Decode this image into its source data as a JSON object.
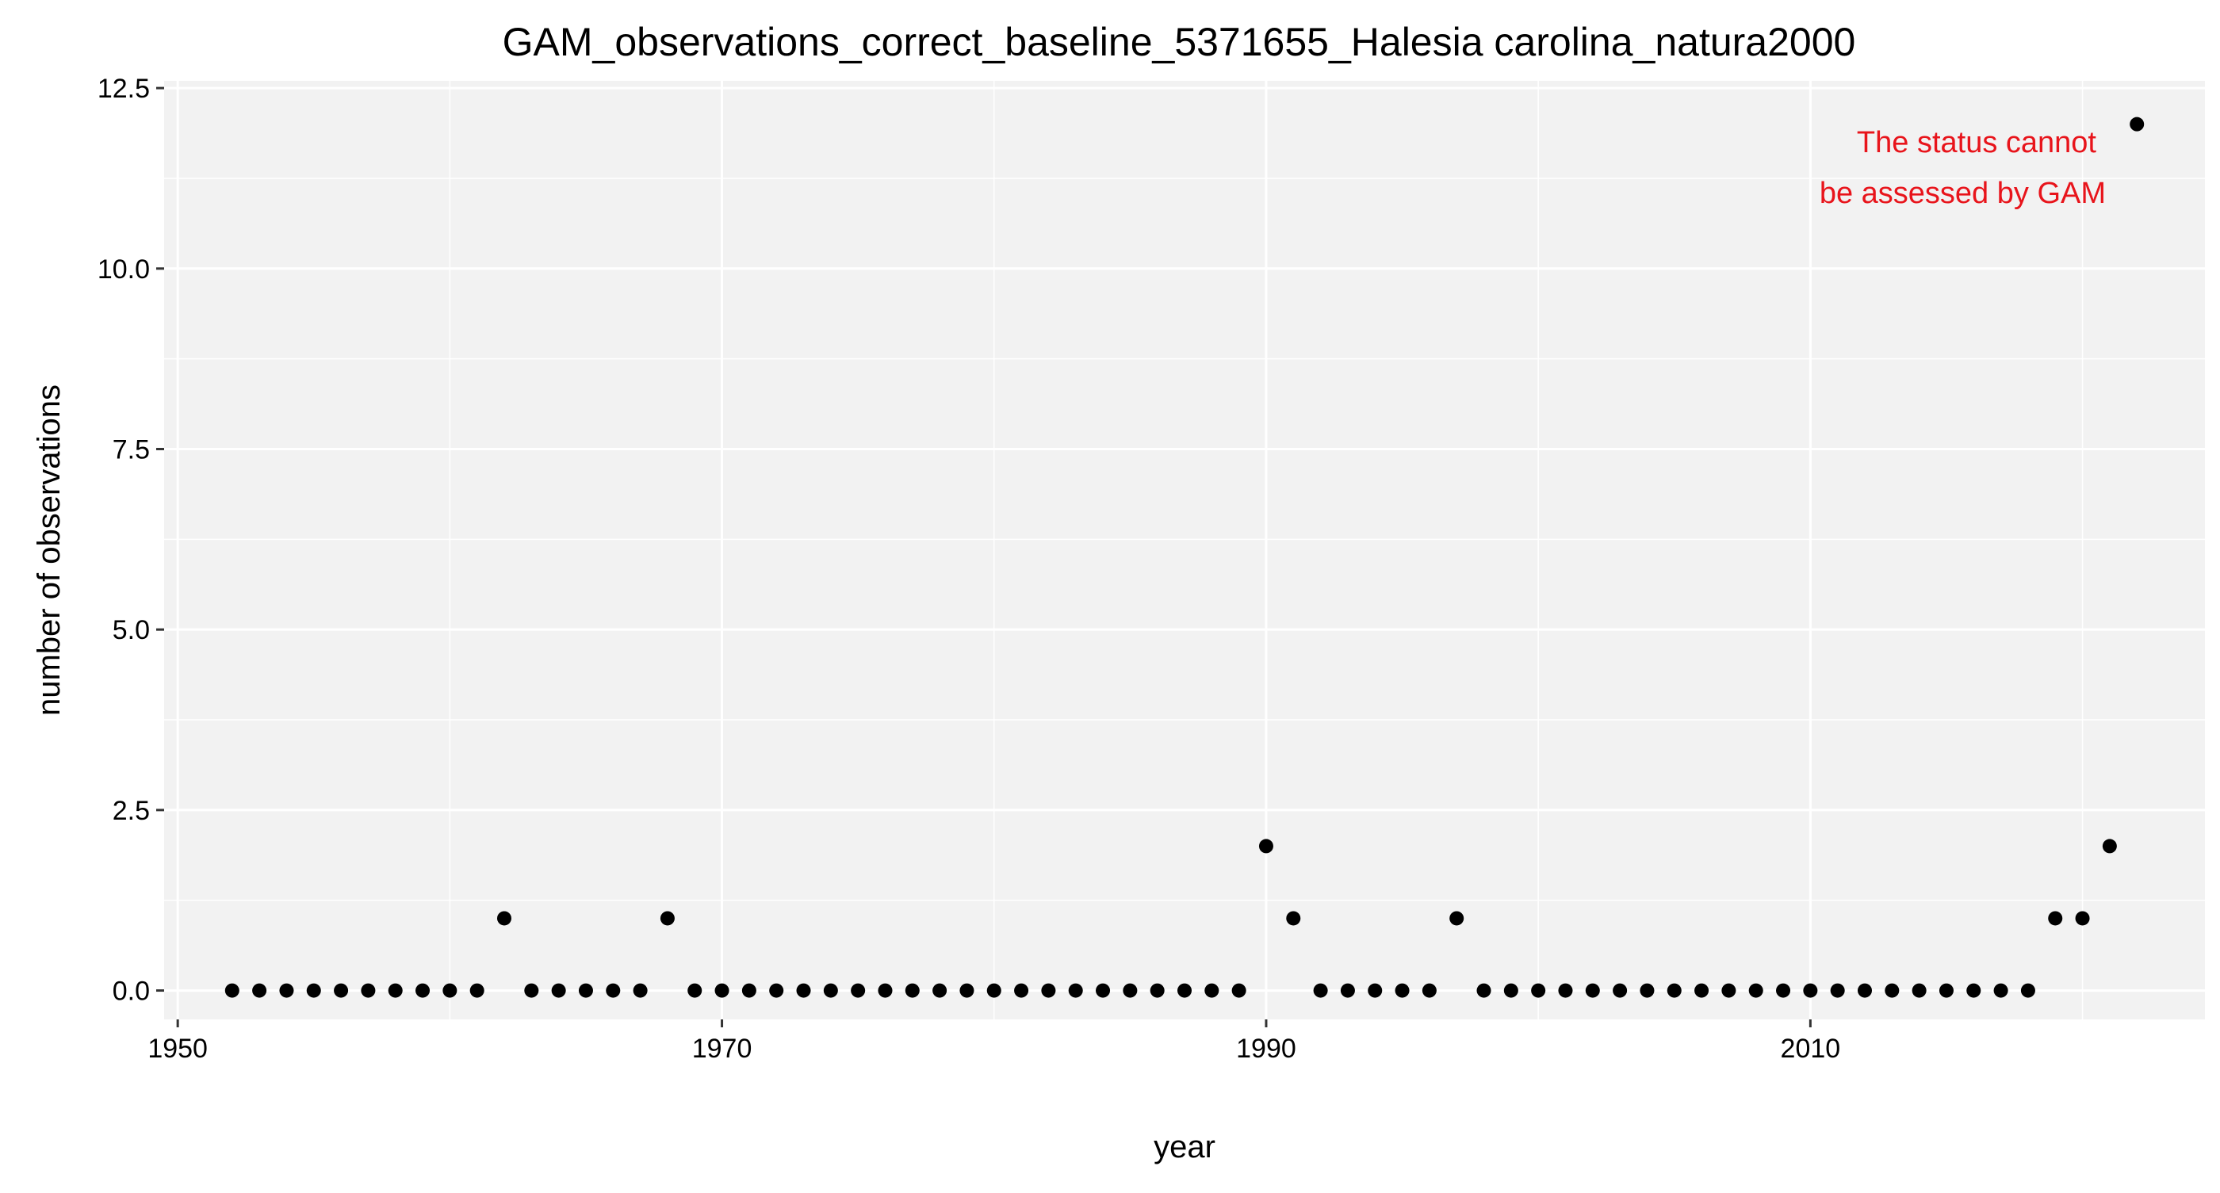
{
  "chart_data": {
    "type": "scatter",
    "title": "GAM_observations_correct_baseline_5371655_Halesia carolina_natura2000",
    "xlabel": "year",
    "ylabel": "number of observations",
    "xlim": [
      1949.5,
      2024.5
    ],
    "ylim": [
      -0.4,
      12.6
    ],
    "x_ticks": [
      1950,
      1970,
      1990,
      2010
    ],
    "x_tick_labels": [
      "1950",
      "1970",
      "1990",
      "2010"
    ],
    "y_ticks": [
      0,
      2.5,
      5,
      7.5,
      10,
      12.5
    ],
    "y_tick_labels": [
      "0.0",
      "2.5",
      "5.0",
      "7.5",
      "10.0",
      "12.5"
    ],
    "grid": true,
    "legend": "none",
    "colors": {
      "panel_background": "#f2f2f2",
      "grid": "#ffffff",
      "points": "#000000",
      "annotation": "#e8141b"
    },
    "annotation": {
      "lines": [
        "The status cannot",
        "be assessed by GAM"
      ],
      "anchor": "top-right"
    },
    "series": [
      {
        "x": [
          1952,
          1953,
          1954,
          1955,
          1956,
          1957,
          1958,
          1959,
          1960,
          1961,
          1962,
          1963,
          1964,
          1965,
          1966,
          1967,
          1968,
          1969,
          1970,
          1971,
          1972,
          1973,
          1974,
          1975,
          1976,
          1977,
          1978,
          1979,
          1980,
          1981,
          1982,
          1983,
          1984,
          1985,
          1986,
          1987,
          1988,
          1989,
          1990,
          1991,
          1992,
          1993,
          1994,
          1995,
          1996,
          1997,
          1998,
          1999,
          2000,
          2001,
          2002,
          2003,
          2004,
          2005,
          2006,
          2007,
          2008,
          2009,
          2010,
          2011,
          2012,
          2013,
          2014,
          2015,
          2016,
          2017,
          2018,
          2019,
          2020,
          2021,
          2022
        ],
        "y": [
          0,
          0,
          0,
          0,
          0,
          0,
          0,
          0,
          0,
          0,
          1,
          0,
          0,
          0,
          0,
          0,
          1,
          0,
          0,
          0,
          0,
          0,
          0,
          0,
          0,
          0,
          0,
          0,
          0,
          0,
          0,
          0,
          0,
          0,
          0,
          0,
          0,
          0,
          2,
          1,
          0,
          0,
          0,
          0,
          0,
          1,
          0,
          0,
          0,
          0,
          0,
          0,
          0,
          0,
          0,
          0,
          0,
          0,
          0,
          0,
          0,
          0,
          0,
          0,
          0,
          0,
          0,
          1,
          1,
          2,
          12
        ]
      }
    ]
  }
}
